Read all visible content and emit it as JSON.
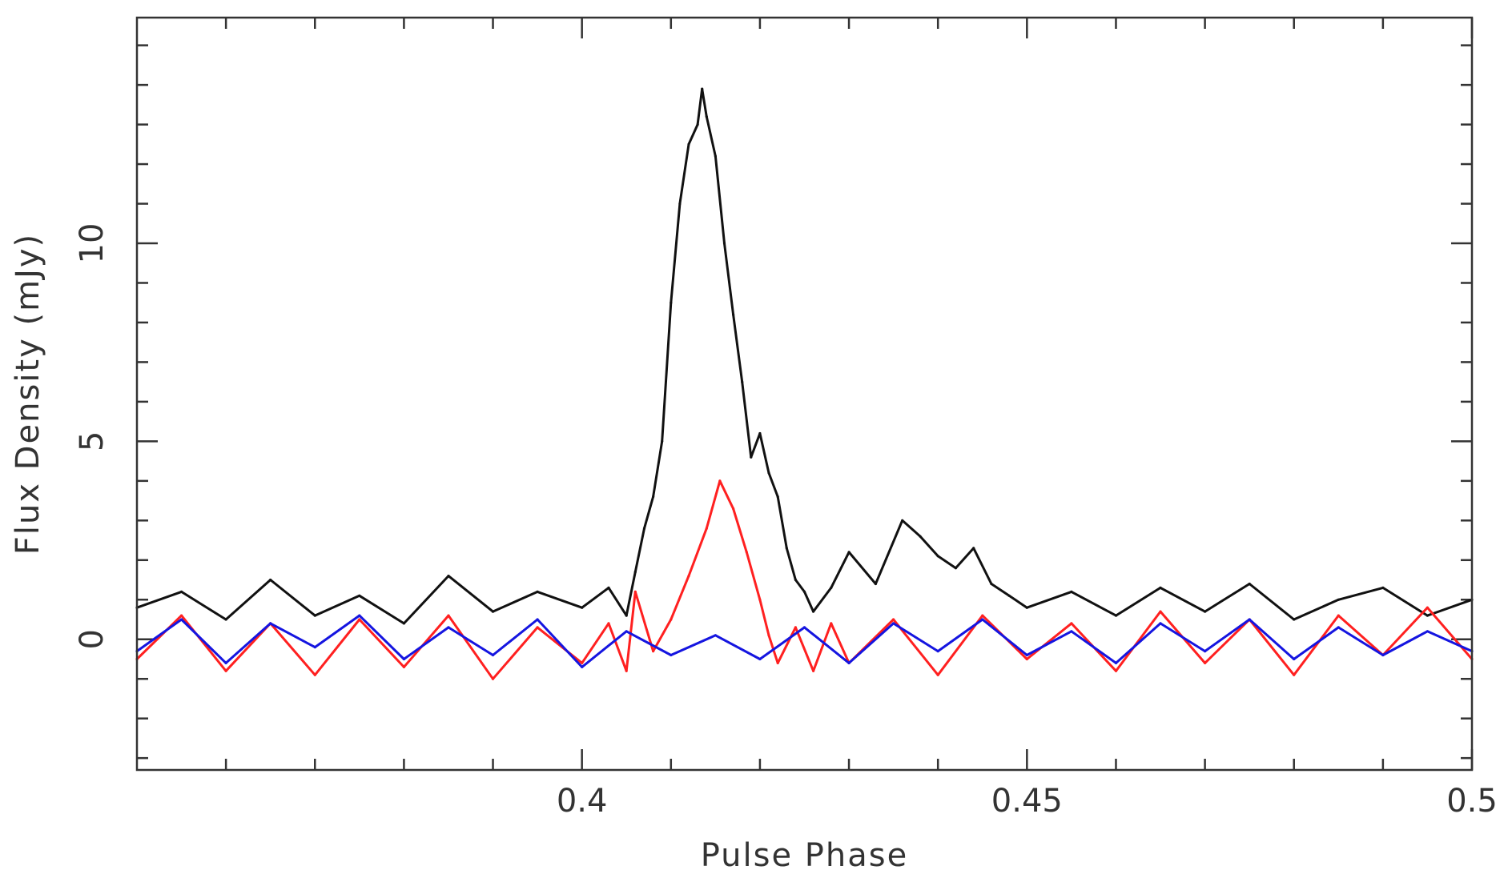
{
  "chart_data": {
    "type": "line",
    "xlabel": "Pulse Phase",
    "ylabel": "Flux Density (mJy)",
    "xlim": [
      0.35,
      0.5
    ],
    "ylim": [
      -3.3,
      15.7
    ],
    "x_ticks": [
      {
        "value": 0.4,
        "label": "0.4"
      },
      {
        "value": 0.45,
        "label": "0.45"
      },
      {
        "value": 0.5,
        "label": "0.5"
      }
    ],
    "x_minor_step": 0.01,
    "y_ticks": [
      {
        "value": 0,
        "label": "0"
      },
      {
        "value": 5,
        "label": "5"
      },
      {
        "value": 10,
        "label": "10"
      }
    ],
    "y_minor_step": 1,
    "legend": "none",
    "grid": false,
    "series": [
      {
        "color": "#111111",
        "x": [
          0.35,
          0.355,
          0.36,
          0.365,
          0.37,
          0.375,
          0.38,
          0.385,
          0.39,
          0.395,
          0.4,
          0.403,
          0.405,
          0.406,
          0.407,
          0.408,
          0.409,
          0.41,
          0.411,
          0.412,
          0.413,
          0.4135,
          0.414,
          0.415,
          0.416,
          0.417,
          0.418,
          0.419,
          0.42,
          0.421,
          0.422,
          0.423,
          0.424,
          0.425,
          0.426,
          0.428,
          0.43,
          0.433,
          0.436,
          0.438,
          0.44,
          0.442,
          0.444,
          0.446,
          0.448,
          0.45,
          0.455,
          0.46,
          0.465,
          0.47,
          0.475,
          0.48,
          0.485,
          0.49,
          0.495,
          0.5
        ],
        "y": [
          0.8,
          1.2,
          0.5,
          1.5,
          0.6,
          1.1,
          0.4,
          1.6,
          0.7,
          1.2,
          0.8,
          1.3,
          0.6,
          1.7,
          2.8,
          3.6,
          5.0,
          8.5,
          11.0,
          12.5,
          13.0,
          13.9,
          13.2,
          12.2,
          10.0,
          8.2,
          6.5,
          4.6,
          5.2,
          4.2,
          3.6,
          2.3,
          1.5,
          1.2,
          0.7,
          1.3,
          2.2,
          1.4,
          3.0,
          2.6,
          2.1,
          1.8,
          2.3,
          1.4,
          1.1,
          0.8,
          1.2,
          0.6,
          1.3,
          0.7,
          1.4,
          0.5,
          1.0,
          1.3,
          0.6,
          1.0
        ]
      },
      {
        "color": "#ff2020",
        "x": [
          0.35,
          0.355,
          0.36,
          0.365,
          0.37,
          0.375,
          0.38,
          0.385,
          0.39,
          0.395,
          0.4,
          0.403,
          0.405,
          0.406,
          0.408,
          0.41,
          0.412,
          0.414,
          0.4155,
          0.417,
          0.4185,
          0.42,
          0.421,
          0.422,
          0.424,
          0.426,
          0.428,
          0.43,
          0.435,
          0.44,
          0.445,
          0.45,
          0.455,
          0.46,
          0.465,
          0.47,
          0.475,
          0.48,
          0.485,
          0.49,
          0.495,
          0.5
        ],
        "y": [
          -0.5,
          0.6,
          -0.8,
          0.4,
          -0.9,
          0.5,
          -0.7,
          0.6,
          -1.0,
          0.3,
          -0.6,
          0.4,
          -0.8,
          1.2,
          -0.3,
          0.5,
          1.6,
          2.8,
          4.0,
          3.3,
          2.2,
          1.0,
          0.1,
          -0.6,
          0.3,
          -0.8,
          0.4,
          -0.6,
          0.5,
          -0.9,
          0.6,
          -0.5,
          0.4,
          -0.8,
          0.7,
          -0.6,
          0.5,
          -0.9,
          0.6,
          -0.4,
          0.8,
          -0.5
        ]
      },
      {
        "color": "#1515e0",
        "x": [
          0.35,
          0.355,
          0.36,
          0.365,
          0.37,
          0.375,
          0.38,
          0.385,
          0.39,
          0.395,
          0.4,
          0.405,
          0.41,
          0.415,
          0.42,
          0.425,
          0.43,
          0.435,
          0.44,
          0.445,
          0.45,
          0.455,
          0.46,
          0.465,
          0.47,
          0.475,
          0.48,
          0.485,
          0.49,
          0.495,
          0.5
        ],
        "y": [
          -0.3,
          0.5,
          -0.6,
          0.4,
          -0.2,
          0.6,
          -0.5,
          0.3,
          -0.4,
          0.5,
          -0.7,
          0.2,
          -0.4,
          0.1,
          -0.5,
          0.3,
          -0.6,
          0.4,
          -0.3,
          0.5,
          -0.4,
          0.2,
          -0.6,
          0.4,
          -0.3,
          0.5,
          -0.5,
          0.3,
          -0.4,
          0.2,
          -0.3
        ]
      }
    ]
  }
}
